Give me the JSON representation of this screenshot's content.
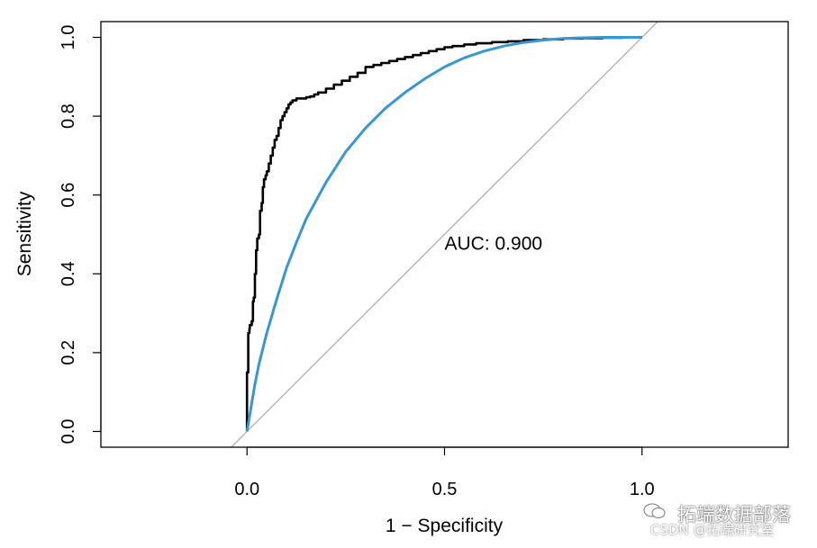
{
  "chart_data": {
    "type": "line",
    "xlabel": "1 − Specificity",
    "ylabel": "Sensitivity",
    "xlim": [
      -0.37,
      1.37
    ],
    "ylim": [
      -0.04,
      1.04
    ],
    "x_ticks": [
      0.0,
      0.5,
      1.0
    ],
    "x_tick_labels": [
      "0.0",
      "0.5",
      "1.0"
    ],
    "y_ticks": [
      0.0,
      0.2,
      0.4,
      0.6,
      0.8,
      1.0
    ],
    "y_tick_labels": [
      "0.0",
      "0.2",
      "0.4",
      "0.6",
      "0.8",
      "1.0"
    ],
    "grid": false,
    "annotation": {
      "text": "AUC: 0.900",
      "x": 0.5,
      "y": 0.48
    },
    "series": [
      {
        "color": "#000000",
        "style": "step",
        "x": [
          0.0,
          0.0,
          0.003,
          0.003,
          0.006,
          0.007,
          0.012,
          0.015,
          0.017,
          0.02,
          0.023,
          0.026,
          0.03,
          0.033,
          0.037,
          0.04,
          0.043,
          0.047,
          0.05,
          0.055,
          0.06,
          0.065,
          0.07,
          0.075,
          0.08,
          0.085,
          0.09,
          0.095,
          0.1,
          0.105,
          0.11,
          0.115,
          0.12,
          0.125,
          0.13,
          0.14,
          0.15,
          0.16,
          0.17,
          0.18,
          0.2,
          0.22,
          0.24,
          0.26,
          0.28,
          0.3,
          0.32,
          0.34,
          0.36,
          0.38,
          0.4,
          0.42,
          0.44,
          0.46,
          0.48,
          0.5,
          0.52,
          0.55,
          0.58,
          0.62,
          0.66,
          0.7,
          0.75,
          0.8,
          0.85,
          0.9,
          0.95,
          1.0
        ],
        "y": [
          0.0,
          0.15,
          0.16,
          0.25,
          0.26,
          0.27,
          0.28,
          0.33,
          0.34,
          0.4,
          0.46,
          0.49,
          0.5,
          0.56,
          0.58,
          0.62,
          0.64,
          0.65,
          0.66,
          0.68,
          0.7,
          0.72,
          0.74,
          0.75,
          0.77,
          0.79,
          0.8,
          0.81,
          0.82,
          0.83,
          0.835,
          0.84,
          0.84,
          0.845,
          0.845,
          0.845,
          0.848,
          0.85,
          0.855,
          0.86,
          0.87,
          0.88,
          0.89,
          0.9,
          0.91,
          0.925,
          0.93,
          0.935,
          0.94,
          0.945,
          0.95,
          0.955,
          0.96,
          0.965,
          0.97,
          0.975,
          0.978,
          0.982,
          0.985,
          0.988,
          0.99,
          0.993,
          0.995,
          0.997,
          0.998,
          0.999,
          1.0,
          1.0
        ]
      },
      {
        "color": "#3a96d2",
        "style": "smooth",
        "x": [
          0.0,
          0.01,
          0.02,
          0.03,
          0.05,
          0.075,
          0.1,
          0.125,
          0.15,
          0.2,
          0.25,
          0.3,
          0.35,
          0.4,
          0.45,
          0.5,
          0.55,
          0.6,
          0.65,
          0.7,
          0.75,
          0.8,
          0.85,
          0.9,
          0.95,
          1.0
        ],
        "y": [
          0.0,
          0.06,
          0.12,
          0.17,
          0.25,
          0.335,
          0.415,
          0.48,
          0.54,
          0.632,
          0.71,
          0.77,
          0.82,
          0.86,
          0.895,
          0.925,
          0.948,
          0.965,
          0.978,
          0.987,
          0.993,
          0.997,
          0.999,
          1.0,
          1.0,
          1.0
        ]
      },
      {
        "color": "#aaaaaa",
        "style": "reference",
        "x": [
          -0.04,
          1.04
        ],
        "y": [
          -0.04,
          1.04
        ]
      }
    ]
  },
  "watermark": {
    "main": "拓端数据部落",
    "sub": "CSDN @拓端研究室"
  }
}
